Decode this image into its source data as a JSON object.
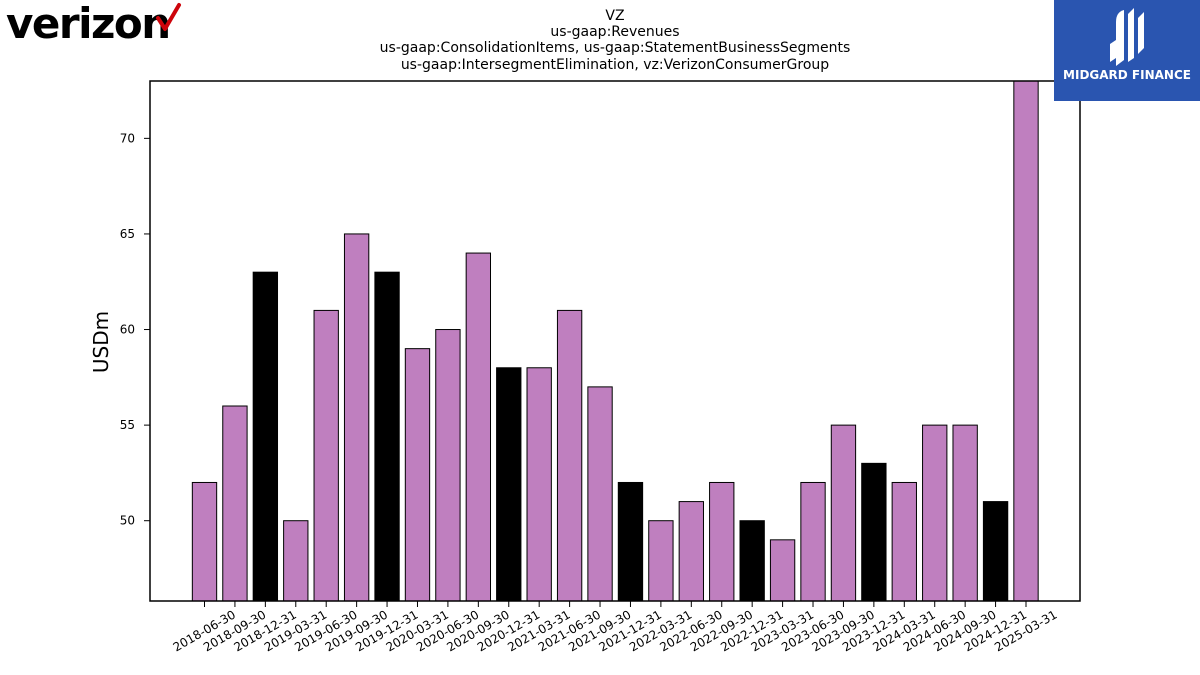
{
  "logos": {
    "company_wordmark": "verizon",
    "company_color": "#000000",
    "check_color": "#cd040b",
    "publisher_name": "MIDGARD FINANCE",
    "publisher_bg": "#2a55b0"
  },
  "chart_data": {
    "type": "bar",
    "title_lines": [
      "VZ",
      "us-gaap:Revenues",
      "us-gaap:ConsolidationItems, us-gaap:StatementBusinessSegments",
      "us-gaap:IntersegmentElimination, vz:VerizonConsumerGroup"
    ],
    "ylabel": "USDm",
    "xlabel": "",
    "ylim": [
      45.8,
      73
    ],
    "yticks": [
      50,
      55,
      60,
      65,
      70
    ],
    "categories": [
      "2018-06-30",
      "2018-09-30",
      "2018-12-31",
      "2019-03-31",
      "2019-06-30",
      "2019-09-30",
      "2019-12-31",
      "2020-03-31",
      "2020-06-30",
      "2020-09-30",
      "2020-12-31",
      "2021-03-31",
      "2021-06-30",
      "2021-09-30",
      "2021-12-31",
      "2022-03-31",
      "2022-06-30",
      "2022-09-30",
      "2022-12-31",
      "2023-03-31",
      "2023-06-30",
      "2023-09-30",
      "2023-12-31",
      "2024-03-31",
      "2024-06-30",
      "2024-09-30",
      "2024-12-31",
      "2025-03-31"
    ],
    "values": [
      52,
      56,
      63,
      50,
      61,
      65,
      63,
      59,
      60,
      64,
      58,
      58,
      61,
      57,
      52,
      50,
      51,
      52,
      50,
      49,
      52,
      55,
      53,
      52,
      55,
      55,
      51,
      73
    ],
    "colors": {
      "quarter": "#bf7fbf",
      "year_end": "#000000"
    },
    "grid": false
  }
}
